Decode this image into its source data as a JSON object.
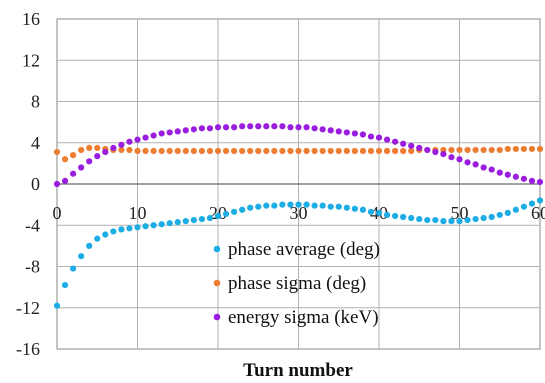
{
  "chart_data": {
    "type": "scatter",
    "title": "",
    "xlabel": "Turn number",
    "ylabel": "",
    "xlim": [
      0,
      60
    ],
    "ylim": [
      -16,
      16
    ],
    "x_ticks": [
      "0",
      "10",
      "20",
      "30",
      "40",
      "50",
      "60"
    ],
    "y_ticks": [
      "16",
      "12",
      "8",
      "4",
      "0",
      "-4",
      "-8",
      "-12",
      "-16"
    ],
    "grid": true,
    "legend_position": "center-right",
    "series": [
      {
        "name": "phase average (deg)",
        "color": "#1cade4",
        "points": [
          [
            0,
            -11.8
          ],
          [
            1,
            -9.8
          ],
          [
            2,
            -8.2
          ],
          [
            3,
            -7.0
          ],
          [
            4,
            -6.0
          ],
          [
            5,
            -5.3
          ],
          [
            6,
            -4.9
          ],
          [
            7,
            -4.6
          ],
          [
            8,
            -4.4
          ],
          [
            9,
            -4.3
          ],
          [
            10,
            -4.2
          ],
          [
            11,
            -4.1
          ],
          [
            12,
            -4.0
          ],
          [
            13,
            -3.9
          ],
          [
            14,
            -3.8
          ],
          [
            15,
            -3.7
          ],
          [
            16,
            -3.6
          ],
          [
            17,
            -3.5
          ],
          [
            18,
            -3.4
          ],
          [
            19,
            -3.3
          ],
          [
            20,
            -3.1
          ],
          [
            21,
            -2.9
          ],
          [
            22,
            -2.7
          ],
          [
            23,
            -2.5
          ],
          [
            24,
            -2.3
          ],
          [
            25,
            -2.2
          ],
          [
            26,
            -2.1
          ],
          [
            27,
            -2.1
          ],
          [
            28,
            -2.0
          ],
          [
            29,
            -2.0
          ],
          [
            30,
            -2.0
          ],
          [
            31,
            -2.0
          ],
          [
            32,
            -2.1
          ],
          [
            33,
            -2.1
          ],
          [
            34,
            -2.2
          ],
          [
            35,
            -2.2
          ],
          [
            36,
            -2.3
          ],
          [
            37,
            -2.4
          ],
          [
            38,
            -2.5
          ],
          [
            39,
            -2.7
          ],
          [
            40,
            -2.8
          ],
          [
            41,
            -3.0
          ],
          [
            42,
            -3.1
          ],
          [
            43,
            -3.2
          ],
          [
            44,
            -3.3
          ],
          [
            45,
            -3.4
          ],
          [
            46,
            -3.5
          ],
          [
            47,
            -3.5
          ],
          [
            48,
            -3.6
          ],
          [
            49,
            -3.6
          ],
          [
            50,
            -3.6
          ],
          [
            51,
            -3.5
          ],
          [
            52,
            -3.4
          ],
          [
            53,
            -3.3
          ],
          [
            54,
            -3.2
          ],
          [
            55,
            -3.0
          ],
          [
            56,
            -2.8
          ],
          [
            57,
            -2.5
          ],
          [
            58,
            -2.2
          ],
          [
            59,
            -1.9
          ],
          [
            60,
            -1.6
          ]
        ]
      },
      {
        "name": "phase sigma (deg)",
        "color": "#ed7d31",
        "points": [
          [
            0,
            3.1
          ],
          [
            1,
            2.4
          ],
          [
            2,
            2.8
          ],
          [
            3,
            3.3
          ],
          [
            4,
            3.5
          ],
          [
            5,
            3.5
          ],
          [
            6,
            3.4
          ],
          [
            7,
            3.3
          ],
          [
            8,
            3.3
          ],
          [
            9,
            3.3
          ],
          [
            10,
            3.2
          ],
          [
            11,
            3.2
          ],
          [
            12,
            3.2
          ],
          [
            13,
            3.2
          ],
          [
            14,
            3.2
          ],
          [
            15,
            3.2
          ],
          [
            16,
            3.2
          ],
          [
            17,
            3.2
          ],
          [
            18,
            3.2
          ],
          [
            19,
            3.2
          ],
          [
            20,
            3.2
          ],
          [
            21,
            3.2
          ],
          [
            22,
            3.2
          ],
          [
            23,
            3.2
          ],
          [
            24,
            3.2
          ],
          [
            25,
            3.2
          ],
          [
            26,
            3.2
          ],
          [
            27,
            3.2
          ],
          [
            28,
            3.2
          ],
          [
            29,
            3.2
          ],
          [
            30,
            3.2
          ],
          [
            31,
            3.2
          ],
          [
            32,
            3.2
          ],
          [
            33,
            3.2
          ],
          [
            34,
            3.2
          ],
          [
            35,
            3.2
          ],
          [
            36,
            3.2
          ],
          [
            37,
            3.2
          ],
          [
            38,
            3.2
          ],
          [
            39,
            3.2
          ],
          [
            40,
            3.2
          ],
          [
            41,
            3.2
          ],
          [
            42,
            3.2
          ],
          [
            43,
            3.2
          ],
          [
            44,
            3.2
          ],
          [
            45,
            3.3
          ],
          [
            46,
            3.3
          ],
          [
            47,
            3.3
          ],
          [
            48,
            3.3
          ],
          [
            49,
            3.3
          ],
          [
            50,
            3.3
          ],
          [
            51,
            3.3
          ],
          [
            52,
            3.3
          ],
          [
            53,
            3.3
          ],
          [
            54,
            3.3
          ],
          [
            55,
            3.3
          ],
          [
            56,
            3.4
          ],
          [
            57,
            3.4
          ],
          [
            58,
            3.4
          ],
          [
            59,
            3.4
          ],
          [
            60,
            3.4
          ]
        ]
      },
      {
        "name": "energy sigma (keV)",
        "color": "#9b1de0",
        "points": [
          [
            0,
            0.0
          ],
          [
            1,
            0.3
          ],
          [
            2,
            1.0
          ],
          [
            3,
            1.6
          ],
          [
            4,
            2.2
          ],
          [
            5,
            2.7
          ],
          [
            6,
            3.1
          ],
          [
            7,
            3.5
          ],
          [
            8,
            3.8
          ],
          [
            9,
            4.1
          ],
          [
            10,
            4.3
          ],
          [
            11,
            4.5
          ],
          [
            12,
            4.7
          ],
          [
            13,
            4.9
          ],
          [
            14,
            5.0
          ],
          [
            15,
            5.1
          ],
          [
            16,
            5.2
          ],
          [
            17,
            5.3
          ],
          [
            18,
            5.4
          ],
          [
            19,
            5.4
          ],
          [
            20,
            5.5
          ],
          [
            21,
            5.5
          ],
          [
            22,
            5.5
          ],
          [
            23,
            5.6
          ],
          [
            24,
            5.6
          ],
          [
            25,
            5.6
          ],
          [
            26,
            5.6
          ],
          [
            27,
            5.6
          ],
          [
            28,
            5.6
          ],
          [
            29,
            5.5
          ],
          [
            30,
            5.5
          ],
          [
            31,
            5.5
          ],
          [
            32,
            5.4
          ],
          [
            33,
            5.3
          ],
          [
            34,
            5.2
          ],
          [
            35,
            5.1
          ],
          [
            36,
            5.0
          ],
          [
            37,
            4.9
          ],
          [
            38,
            4.8
          ],
          [
            39,
            4.6
          ],
          [
            40,
            4.5
          ],
          [
            41,
            4.3
          ],
          [
            42,
            4.1
          ],
          [
            43,
            3.9
          ],
          [
            44,
            3.7
          ],
          [
            45,
            3.5
          ],
          [
            46,
            3.3
          ],
          [
            47,
            3.1
          ],
          [
            48,
            2.9
          ],
          [
            49,
            2.6
          ],
          [
            50,
            2.4
          ],
          [
            51,
            2.1
          ],
          [
            52,
            1.9
          ],
          [
            53,
            1.6
          ],
          [
            54,
            1.4
          ],
          [
            55,
            1.1
          ],
          [
            56,
            0.9
          ],
          [
            57,
            0.7
          ],
          [
            58,
            0.5
          ],
          [
            59,
            0.3
          ],
          [
            60,
            0.2
          ]
        ]
      }
    ]
  }
}
